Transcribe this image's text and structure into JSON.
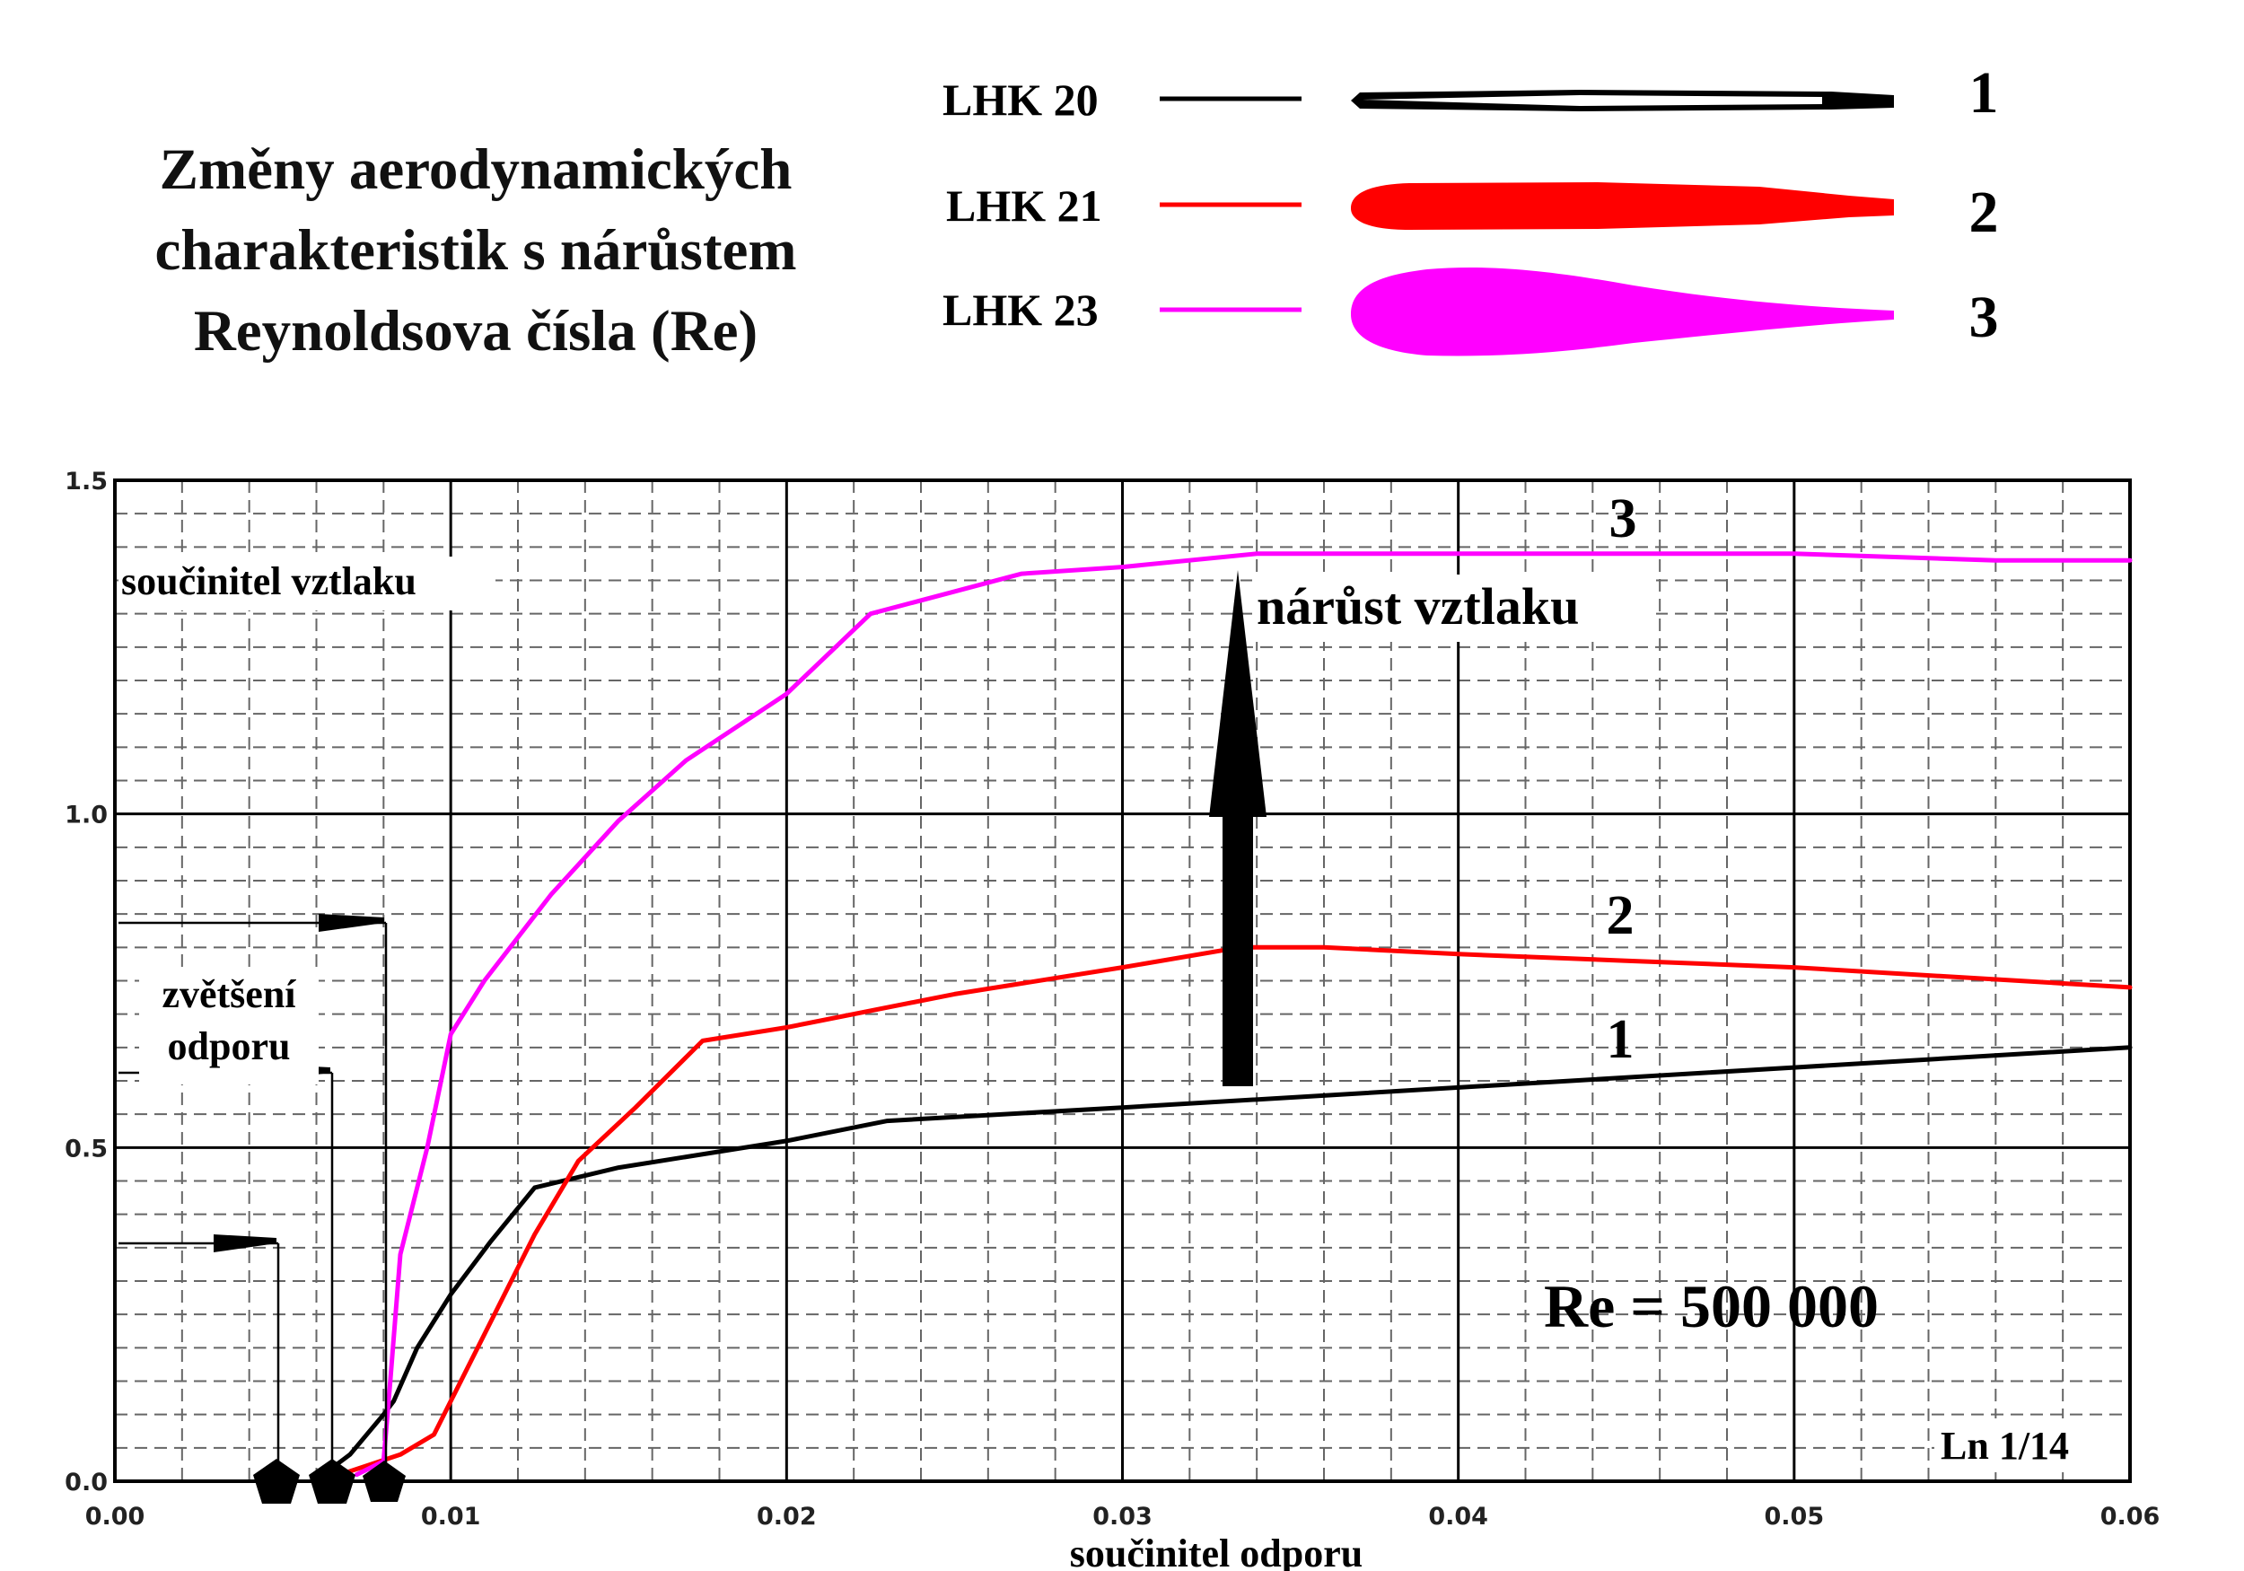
{
  "title": {
    "lines": [
      "Změny aerodynamických",
      "charakteristik s nárůstem",
      "Reynoldsova čísla (Re)"
    ]
  },
  "legend": [
    {
      "label": "LHK 20",
      "number": "1",
      "color": "#000000"
    },
    {
      "label": "LHK 21",
      "number": "2",
      "color": "#ff0000"
    },
    {
      "label": "LHK 23",
      "number": "3",
      "color": "#ff00ff"
    }
  ],
  "annotations": {
    "lift_axis_note": "součinitel  vztlaku",
    "lift_increase": "nárůst  vztlaku",
    "drag_increase_line1": "zvětšení",
    "drag_increase_line2": "odporu",
    "reynolds": "Re = 500 000",
    "code": "Ln 1/14"
  },
  "chart_data": {
    "type": "line",
    "xlabel": "součinitel odporu",
    "ylabel": "součinitel  vztlaku",
    "xlim": [
      0,
      0.06
    ],
    "ylim": [
      0,
      1.5
    ],
    "x_ticks": [
      "0.00",
      "0.01",
      "0.02",
      "0.03",
      "0.04",
      "0.05",
      "0.06"
    ],
    "y_ticks": [
      "0.0",
      "0.5",
      "1.0",
      "1.5"
    ],
    "grid": true,
    "series": [
      {
        "name": "1",
        "color": "#000000",
        "points": [
          [
            0.0062,
            0.01
          ],
          [
            0.007,
            0.04
          ],
          [
            0.008,
            0.1
          ],
          [
            0.0083,
            0.12
          ],
          [
            0.009,
            0.2
          ],
          [
            0.01,
            0.28
          ],
          [
            0.0112,
            0.36
          ],
          [
            0.0125,
            0.44
          ],
          [
            0.015,
            0.47
          ],
          [
            0.02,
            0.51
          ],
          [
            0.023,
            0.54
          ],
          [
            0.03,
            0.56
          ],
          [
            0.04,
            0.59
          ],
          [
            0.05,
            0.62
          ],
          [
            0.06,
            0.65
          ]
        ]
      },
      {
        "name": "2",
        "color": "#ff0000",
        "points": [
          [
            0.0067,
            0.01
          ],
          [
            0.0085,
            0.04
          ],
          [
            0.0095,
            0.07
          ],
          [
            0.01,
            0.12
          ],
          [
            0.011,
            0.22
          ],
          [
            0.0125,
            0.37
          ],
          [
            0.0138,
            0.48
          ],
          [
            0.0155,
            0.56
          ],
          [
            0.0175,
            0.66
          ],
          [
            0.02,
            0.68
          ],
          [
            0.025,
            0.73
          ],
          [
            0.03,
            0.77
          ],
          [
            0.0335,
            0.8
          ],
          [
            0.036,
            0.8
          ],
          [
            0.04,
            0.79
          ],
          [
            0.045,
            0.78
          ],
          [
            0.05,
            0.77
          ],
          [
            0.06,
            0.74
          ]
        ]
      },
      {
        "name": "3",
        "color": "#ff00ff",
        "points": [
          [
            0.0072,
            0.01
          ],
          [
            0.008,
            0.03
          ],
          [
            0.0082,
            0.15
          ],
          [
            0.0085,
            0.34
          ],
          [
            0.0093,
            0.5
          ],
          [
            0.01,
            0.67
          ],
          [
            0.011,
            0.75
          ],
          [
            0.013,
            0.88
          ],
          [
            0.015,
            0.99
          ],
          [
            0.017,
            1.08
          ],
          [
            0.02,
            1.18
          ],
          [
            0.0225,
            1.3
          ],
          [
            0.027,
            1.36
          ],
          [
            0.03,
            1.37
          ],
          [
            0.034,
            1.39
          ],
          [
            0.04,
            1.39
          ],
          [
            0.05,
            1.39
          ],
          [
            0.056,
            1.38
          ],
          [
            0.06,
            1.38
          ]
        ]
      }
    ]
  }
}
